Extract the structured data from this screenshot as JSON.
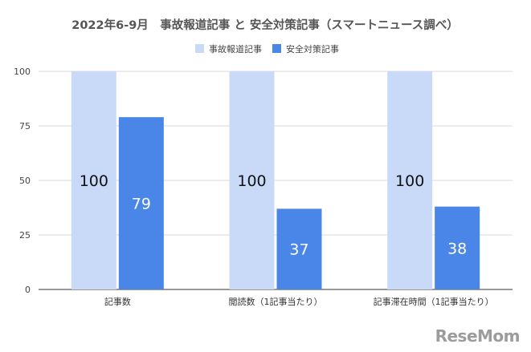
{
  "chart_data": {
    "type": "bar",
    "title": "2022年6-9月　事故報道記事 と 安全対策記事（スマートニュース調べ）",
    "categories": [
      "記事数",
      "閲読数（1記事当たり）",
      "記事滞在時間（1記事当たり）"
    ],
    "series": [
      {
        "name": "事故報道記事",
        "values": [
          100,
          100,
          100
        ],
        "color": "#c9daf8",
        "label_color": "#111111"
      },
      {
        "name": "安全対策記事",
        "values": [
          79,
          37,
          38
        ],
        "color": "#4a86e8",
        "label_color": "#ffffff"
      }
    ],
    "ylim": [
      0,
      100
    ],
    "yticks": [
      0,
      25,
      50,
      75,
      100
    ],
    "xlabel": "",
    "ylabel": "",
    "legend_position": "top-center",
    "grid": true
  },
  "watermark": {
    "text": "ReseMom"
  }
}
